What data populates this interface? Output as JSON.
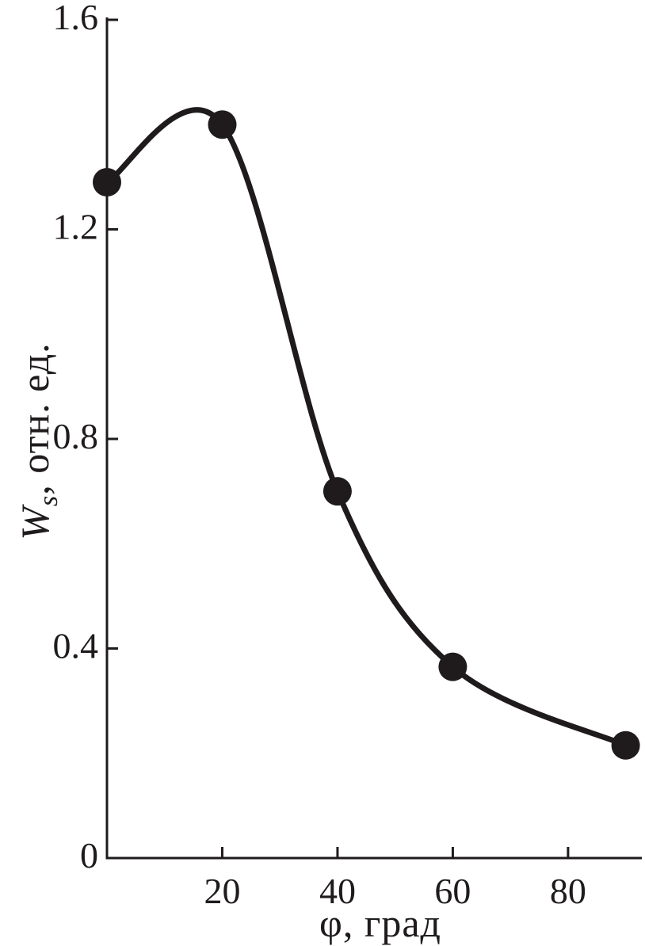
{
  "chart_data": {
    "type": "line",
    "title": "",
    "xlabel": "φ, град",
    "ylabel": "W_s, отн. ед.",
    "ylabel_parts": {
      "symbol": "W",
      "subscript": "s",
      "units": ", отн. ед."
    },
    "series": [
      {
        "name": "Ws",
        "marker": "filled-circle",
        "x": [
          0,
          20,
          40,
          60,
          90
        ],
        "y": [
          1.29,
          1.4,
          0.7,
          0.365,
          0.215
        ]
      }
    ],
    "x_ticks": {
      "values": [
        20,
        40,
        60,
        80
      ],
      "labels": [
        "20",
        "40",
        "60",
        "80"
      ]
    },
    "y_ticks": {
      "values": [
        0,
        0.4,
        0.8,
        1.2,
        1.6
      ],
      "labels": [
        "0",
        "0.4",
        "0.8",
        "1.2",
        "1.6"
      ]
    },
    "xlim": [
      0,
      92.8
    ],
    "ylim": [
      0,
      1.6
    ],
    "grid": false,
    "legend": "none",
    "line_color": "#1f1b1c",
    "marker_color": "#1f1b1c",
    "background": "#ffffff"
  }
}
